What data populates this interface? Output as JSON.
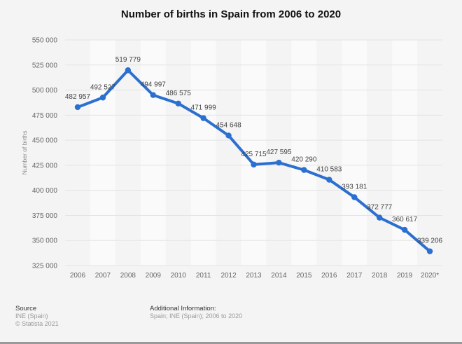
{
  "chart_data": {
    "type": "line",
    "title": "Number of births in Spain from 2006 to 2020",
    "xlabel": "",
    "ylabel": "Number of births",
    "ylim": [
      325000,
      550000
    ],
    "yticks": [
      325000,
      350000,
      375000,
      400000,
      425000,
      450000,
      475000,
      500000,
      525000,
      550000
    ],
    "ytick_labels": [
      "325 000",
      "350 000",
      "375 000",
      "400 000",
      "425 000",
      "450 000",
      "475 000",
      "500 000",
      "525 000",
      "550 000"
    ],
    "grid": true,
    "categories": [
      "2006",
      "2007",
      "2008",
      "2009",
      "2010",
      "2011",
      "2012",
      "2013",
      "2014",
      "2015",
      "2016",
      "2017",
      "2018",
      "2019",
      "2020*"
    ],
    "series": [
      {
        "name": "Number of births",
        "color": "#2b6fd0",
        "values": [
          482957,
          492527,
          519779,
          494997,
          486575,
          471999,
          454648,
          425715,
          427595,
          420290,
          410583,
          393181,
          372777,
          360617,
          339206
        ],
        "labels": [
          "482 957",
          "492 527",
          "519 779",
          "494 997",
          "486 575",
          "471 999",
          "454 648",
          "425 715",
          "427 595",
          "420 290",
          "410 583",
          "393 181",
          "372 777",
          "360 617",
          "339 206"
        ]
      }
    ]
  },
  "footer": {
    "source_heading": "Source",
    "source_lines": [
      "INE (Spain)",
      "© Statista 2021"
    ],
    "additional_heading": "Additional Information:",
    "additional_text": "Spain; INE (Spain); 2006 to 2020"
  }
}
